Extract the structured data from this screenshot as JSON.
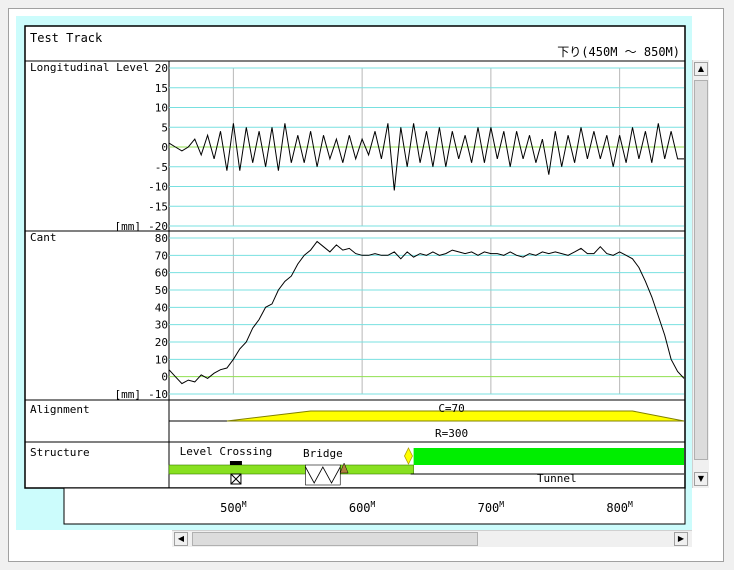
{
  "title": "Test Track",
  "direction_label": "下り(450M ～ 850M)",
  "icons": {
    "up": "scroll-up-arrow-icon",
    "down": "scroll-down-arrow-icon",
    "left": "scroll-left-arrow-icon",
    "right": "scroll-right-arrow-icon"
  },
  "chart_data": [
    {
      "type": "line",
      "label": "Longitudinal Level",
      "unit": "[mm]",
      "ylim": [
        -20,
        20
      ],
      "yticks": [
        20,
        15,
        10,
        5,
        0,
        -5,
        -10,
        -15,
        -20
      ],
      "xlim": [
        450,
        850
      ],
      "color": "#000000",
      "x": [
        450,
        455,
        460,
        465,
        470,
        475,
        480,
        485,
        490,
        495,
        500,
        505,
        510,
        515,
        520,
        525,
        530,
        535,
        540,
        545,
        550,
        555,
        560,
        565,
        570,
        575,
        580,
        585,
        590,
        595,
        600,
        605,
        610,
        615,
        620,
        625,
        630,
        635,
        640,
        645,
        650,
        655,
        660,
        665,
        670,
        675,
        680,
        685,
        690,
        695,
        700,
        705,
        710,
        715,
        720,
        725,
        730,
        735,
        740,
        745,
        750,
        755,
        760,
        765,
        770,
        775,
        780,
        785,
        790,
        795,
        800,
        805,
        810,
        815,
        820,
        825,
        830,
        835,
        840,
        845,
        850
      ],
      "y": [
        1,
        0,
        -1,
        0,
        2,
        -2,
        3,
        -3,
        4,
        -6,
        6,
        -6,
        5,
        -4,
        4,
        -5,
        5,
        -6,
        6,
        -4,
        3,
        -4,
        4,
        -5,
        3,
        -3,
        2,
        -4,
        3,
        -3,
        2,
        -2,
        4,
        -3,
        6,
        -11,
        5,
        -5,
        6,
        -4,
        4,
        -5,
        5,
        -5,
        4,
        -3,
        3,
        -4,
        5,
        -4,
        5,
        -3,
        4,
        -5,
        4,
        -3,
        3,
        -4,
        2,
        -7,
        4,
        -5,
        3,
        -4,
        5,
        -3,
        4,
        -3,
        3,
        -5,
        3,
        -4,
        5,
        -3,
        4,
        -4,
        6,
        -3,
        4,
        -3,
        -3
      ]
    },
    {
      "type": "line",
      "label": "Cant",
      "unit": "[mm]",
      "ylim": [
        -10,
        80
      ],
      "yticks": [
        80,
        70,
        60,
        50,
        40,
        30,
        20,
        10,
        0,
        -10
      ],
      "xlim": [
        450,
        850
      ],
      "color": "#000000",
      "x": [
        450,
        455,
        460,
        465,
        470,
        475,
        480,
        485,
        490,
        495,
        500,
        505,
        510,
        515,
        520,
        525,
        530,
        535,
        540,
        545,
        550,
        555,
        560,
        565,
        570,
        575,
        580,
        585,
        590,
        595,
        600,
        605,
        610,
        615,
        620,
        625,
        630,
        635,
        640,
        645,
        650,
        655,
        660,
        665,
        670,
        675,
        680,
        685,
        690,
        695,
        700,
        705,
        710,
        715,
        720,
        725,
        730,
        735,
        740,
        745,
        750,
        755,
        760,
        765,
        770,
        775,
        780,
        785,
        790,
        795,
        800,
        805,
        810,
        815,
        820,
        825,
        830,
        835,
        840,
        845,
        850
      ],
      "y": [
        4,
        0,
        -4,
        -2,
        -3,
        1,
        -1,
        2,
        4,
        5,
        10,
        16,
        20,
        28,
        33,
        40,
        42,
        50,
        55,
        58,
        65,
        70,
        73,
        78,
        75,
        72,
        76,
        73,
        74,
        71,
        70,
        70,
        71,
        70,
        70,
        72,
        68,
        72,
        69,
        71,
        70,
        72,
        70,
        71,
        73,
        72,
        71,
        72,
        70,
        72,
        71,
        71,
        70,
        72,
        70,
        69,
        71,
        70,
        72,
        71,
        72,
        71,
        70,
        72,
        74,
        71,
        71,
        75,
        71,
        70,
        72,
        70,
        68,
        63,
        55,
        46,
        35,
        24,
        10,
        3,
        -1
      ]
    },
    {
      "type": "track_layout",
      "label": "Alignment",
      "xlim": [
        450,
        850
      ],
      "curve": {
        "label": "C=70",
        "start": 495,
        "full_start": 560,
        "full_end": 810,
        "end": 850,
        "color": "#ffff00"
      },
      "radius_label": "R=300"
    },
    {
      "type": "track_layout",
      "label": "Structure",
      "xlim": [
        450,
        850
      ],
      "items": [
        {
          "label": "Level Crossing",
          "x": 502,
          "color": "#ffffff"
        },
        {
          "label": "Bridge",
          "start": 556,
          "end": 583,
          "color": "#ffffff"
        },
        {
          "label": "Tunnel",
          "start": 640,
          "end": 850,
          "color": "#00ee00"
        }
      ],
      "ground": [
        {
          "start": 450,
          "end": 556,
          "color": "#88e020"
        },
        {
          "start": 583,
          "end": 640,
          "color": "#88e020"
        }
      ],
      "markers": [
        {
          "x": 586,
          "color": "#b08040"
        },
        {
          "x": 636,
          "color": "#ffff00"
        }
      ]
    }
  ],
  "x_axis": {
    "ticks": [
      500,
      600,
      700,
      800
    ],
    "tick_labels": [
      "500",
      "600",
      "700",
      "800"
    ],
    "tick_suffix": "M"
  }
}
